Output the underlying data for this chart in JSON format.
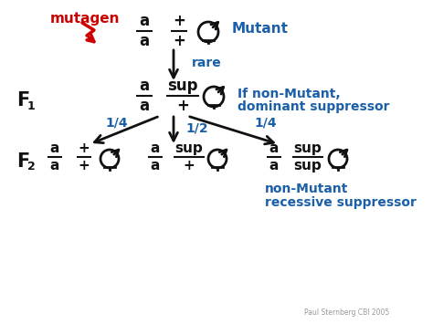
{
  "bg_color": "#ffffff",
  "blue": "#1a5fa8",
  "black": "#111111",
  "red": "#cc0000",
  "gray": "#999999",
  "figsize": [
    4.74,
    3.55
  ],
  "dpi": 100,
  "footer": "Paul Sternberg CBI 2005",
  "xlim": [
    0,
    474
  ],
  "ylim": [
    0,
    355
  ]
}
